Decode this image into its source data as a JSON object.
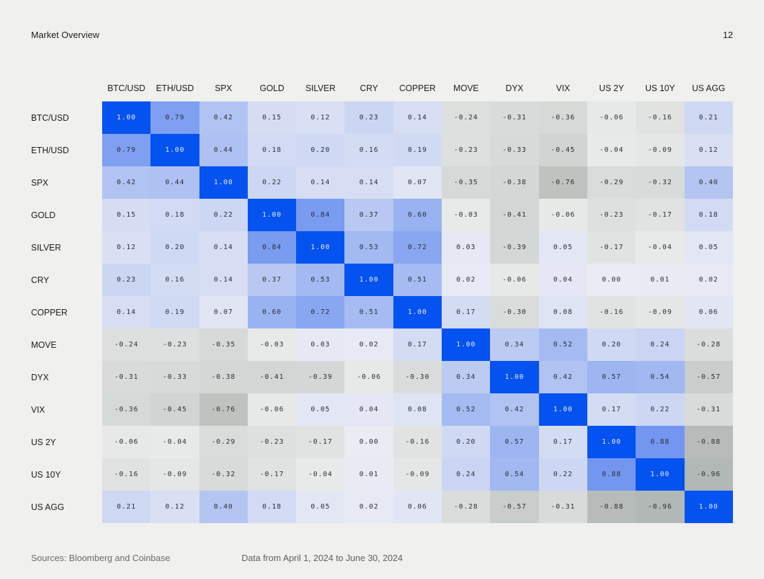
{
  "header": {
    "title": "Market Overview",
    "page_number": "12"
  },
  "footer": {
    "sources": "Sources: Bloomberg and Coinbase",
    "date_range": "Data from April 1, 2024 to June 30, 2024"
  },
  "colors": {
    "page_background": "#F0F0EE",
    "accent_blue": "#0452F0",
    "diagonal_text": "#E4EDFF",
    "cell_text": "#2B2F36",
    "positive_scale_low": "#EAECF4",
    "positive_scale_high": "#638BEF",
    "negative_scale_low": "#EAECEB",
    "negative_scale_high": "#B0B6B3"
  },
  "chart_data": {
    "type": "heatmap",
    "title": "Market Overview",
    "legend_position": "none",
    "grid": false,
    "value_range": [
      -1,
      1
    ],
    "categories": [
      "BTC/USD",
      "ETH/USD",
      "SPX",
      "GOLD",
      "SILVER",
      "CRY",
      "COPPER",
      "MOVE",
      "DYX",
      "VIX",
      "US 2Y",
      "US 10Y",
      "US AGG"
    ],
    "matrix": [
      [
        1.0,
        0.79,
        0.42,
        0.15,
        0.12,
        0.23,
        0.14,
        -0.24,
        -0.31,
        -0.36,
        -0.06,
        -0.16,
        0.21
      ],
      [
        0.79,
        1.0,
        0.44,
        0.18,
        0.2,
        0.16,
        0.19,
        -0.23,
        -0.33,
        -0.45,
        -0.04,
        -0.09,
        0.12
      ],
      [
        0.42,
        0.44,
        1.0,
        0.22,
        0.14,
        0.14,
        0.07,
        -0.35,
        -0.38,
        -0.76,
        -0.29,
        -0.32,
        0.4
      ],
      [
        0.15,
        0.18,
        0.22,
        1.0,
        0.84,
        0.37,
        0.6,
        -0.03,
        -0.41,
        -0.06,
        -0.23,
        -0.17,
        0.18
      ],
      [
        0.12,
        0.2,
        0.14,
        0.84,
        1.0,
        0.53,
        0.72,
        0.03,
        -0.39,
        0.05,
        -0.17,
        -0.04,
        0.05
      ],
      [
        0.23,
        0.16,
        0.14,
        0.37,
        0.53,
        1.0,
        0.51,
        0.02,
        -0.06,
        0.04,
        0.0,
        0.01,
        0.02
      ],
      [
        0.14,
        0.19,
        0.07,
        0.6,
        0.72,
        0.51,
        1.0,
        0.17,
        -0.3,
        0.08,
        -0.16,
        -0.09,
        0.06
      ],
      [
        -0.24,
        -0.23,
        -0.35,
        -0.03,
        0.03,
        0.02,
        0.17,
        1.0,
        0.34,
        0.52,
        0.2,
        0.24,
        -0.28
      ],
      [
        -0.31,
        -0.33,
        -0.38,
        -0.41,
        -0.39,
        -0.06,
        -0.3,
        0.34,
        1.0,
        0.42,
        0.57,
        0.54,
        -0.57
      ],
      [
        -0.36,
        -0.45,
        -0.76,
        -0.06,
        0.05,
        0.04,
        0.08,
        0.52,
        0.42,
        1.0,
        0.17,
        0.22,
        -0.31
      ],
      [
        -0.06,
        -0.04,
        -0.29,
        -0.23,
        -0.17,
        0.0,
        -0.16,
        0.2,
        0.57,
        0.17,
        1.0,
        0.88,
        -0.88
      ],
      [
        -0.16,
        -0.09,
        -0.32,
        -0.17,
        -0.04,
        0.01,
        -0.09,
        0.24,
        0.54,
        0.22,
        0.88,
        1.0,
        -0.96
      ],
      [
        0.21,
        0.12,
        0.4,
        0.18,
        0.05,
        0.02,
        0.06,
        -0.28,
        -0.57,
        -0.31,
        -0.88,
        -0.96,
        1.0
      ]
    ]
  }
}
